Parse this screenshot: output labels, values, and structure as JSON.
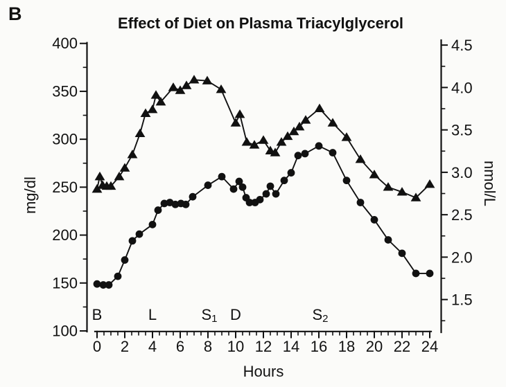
{
  "figure": {
    "panel_label": "B",
    "title": "Effect of Diet on Plasma Triacylglycerol",
    "x_axis_label": "Hours",
    "y_axis_label_left": "mg/dl",
    "y_axis_label_right": "nmol/L"
  },
  "colors": {
    "ink": "#111111",
    "paper": "#fbfbf9"
  },
  "chart_data": {
    "type": "line",
    "title": "Effect of Diet on Plasma Triacylglycerol",
    "xlabel": "Hours",
    "ylabel_left": "mg/dl",
    "ylabel_right": "nmol/L",
    "grid": false,
    "legend": "none",
    "xlim": [
      0,
      24
    ],
    "x_major_tick_step": 2,
    "x_minor_tick_step": 0.5,
    "ylim_left": [
      100,
      400
    ],
    "y_left_major_tick_step": 50,
    "y_left_minor_tick_step": 25,
    "y_right_ticks": [
      1.5,
      2.0,
      2.5,
      3.0,
      3.5,
      4.0,
      4.5
    ],
    "y_right_minor_step": 0.25,
    "right_axis_mg_per_nmol": 88.5,
    "meal_annotations": [
      {
        "label": "B",
        "subscript": "",
        "x": 0
      },
      {
        "label": "L",
        "subscript": "",
        "x": 4
      },
      {
        "label": "S",
        "subscript": "1",
        "x": 8
      },
      {
        "label": "D",
        "subscript": "",
        "x": 10
      },
      {
        "label": "S",
        "subscript": "2",
        "x": 16
      }
    ],
    "series": [
      {
        "name": "triangle-series",
        "marker": "triangle",
        "points": [
          [
            0,
            248
          ],
          [
            0.2,
            261
          ],
          [
            0.4,
            252
          ],
          [
            0.7,
            251
          ],
          [
            1,
            251
          ],
          [
            1.6,
            261
          ],
          [
            2,
            270
          ],
          [
            2.55,
            284
          ],
          [
            3.1,
            306
          ],
          [
            3.5,
            327
          ],
          [
            4,
            331
          ],
          [
            4.25,
            346
          ],
          [
            4.6,
            339
          ],
          [
            5.5,
            354
          ],
          [
            6,
            351
          ],
          [
            6.45,
            356
          ],
          [
            7,
            362
          ],
          [
            7.95,
            361
          ],
          [
            8.95,
            352
          ],
          [
            10,
            317
          ],
          [
            10.3,
            326
          ],
          [
            10.8,
            297
          ],
          [
            11.35,
            294
          ],
          [
            12,
            299
          ],
          [
            12.5,
            288
          ],
          [
            12.85,
            286
          ],
          [
            13.3,
            297
          ],
          [
            13.75,
            303
          ],
          [
            14.2,
            308
          ],
          [
            14.6,
            313
          ],
          [
            15.05,
            320
          ],
          [
            16.05,
            332
          ],
          [
            17,
            317
          ],
          [
            18,
            302
          ],
          [
            19,
            279
          ],
          [
            20,
            263
          ],
          [
            21,
            250
          ],
          [
            22,
            245
          ],
          [
            23,
            239
          ],
          [
            24,
            253
          ]
        ]
      },
      {
        "name": "circle-series",
        "marker": "circle",
        "points": [
          [
            0,
            149
          ],
          [
            0.45,
            148
          ],
          [
            0.85,
            148
          ],
          [
            1.5,
            157
          ],
          [
            2,
            174
          ],
          [
            2.55,
            194
          ],
          [
            3.05,
            201
          ],
          [
            4,
            211
          ],
          [
            4.4,
            226
          ],
          [
            4.85,
            233
          ],
          [
            5.25,
            234
          ],
          [
            5.65,
            232
          ],
          [
            6.05,
            233
          ],
          [
            6.4,
            232
          ],
          [
            6.9,
            240
          ],
          [
            8,
            252
          ],
          [
            9,
            261
          ],
          [
            9.85,
            248
          ],
          [
            10.25,
            256
          ],
          [
            10.5,
            250
          ],
          [
            10.75,
            239
          ],
          [
            11,
            234
          ],
          [
            11.4,
            234
          ],
          [
            11.75,
            237
          ],
          [
            12.2,
            243
          ],
          [
            12.5,
            251
          ],
          [
            12.9,
            243
          ],
          [
            13.5,
            257
          ],
          [
            14,
            265
          ],
          [
            14.5,
            283
          ],
          [
            15,
            285
          ],
          [
            16,
            293
          ],
          [
            17,
            286
          ],
          [
            18,
            257
          ],
          [
            19,
            234
          ],
          [
            20,
            216
          ],
          [
            21,
            195
          ],
          [
            22,
            181
          ],
          [
            23,
            160
          ],
          [
            24,
            160
          ]
        ]
      }
    ]
  }
}
